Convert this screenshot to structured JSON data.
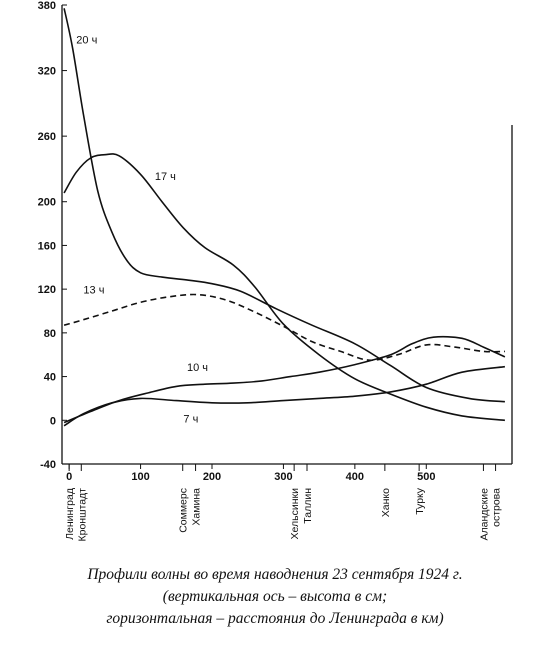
{
  "chart_data": {
    "type": "line",
    "title": "",
    "xlabel": "",
    "ylabel": "",
    "xlim": [
      -10,
      620
    ],
    "ylim": [
      -40,
      380
    ],
    "y_ticks": [
      -40,
      0,
      40,
      80,
      120,
      160,
      200,
      260,
      320,
      380
    ],
    "x_ticks": [
      0,
      100,
      200,
      300,
      400,
      500
    ],
    "grid": false,
    "dashed_series": [
      "13 ч"
    ],
    "locations": [
      {
        "x": 0,
        "label": "Ленинград"
      },
      {
        "x": 17,
        "label": "Кронштадт"
      },
      {
        "x": 159,
        "label": "Соммерс"
      },
      {
        "x": 177,
        "label": "Хамина"
      },
      {
        "x": 315,
        "label": "Хельсинки"
      },
      {
        "x": 333,
        "label": "Таллин"
      },
      {
        "x": 442,
        "label": "Ханко"
      },
      {
        "x": 490,
        "label": "Турку"
      },
      {
        "x": 580,
        "label": "Аландские"
      },
      {
        "x": 597,
        "label": "острова"
      }
    ],
    "series": [
      {
        "name": "20 ч",
        "x": [
          -7,
          5,
          20,
          40,
          60,
          80,
          100,
          130,
          170,
          200,
          240,
          290,
          340,
          400,
          450,
          500,
          560,
          610
        ],
        "values": [
          377,
          340,
          280,
          210,
          172,
          147,
          135,
          131,
          128,
          125,
          118,
          102,
          87,
          70,
          50,
          30,
          20,
          17
        ]
      },
      {
        "name": "17 ч",
        "x": [
          -7,
          10,
          30,
          50,
          70,
          100,
          130,
          160,
          190,
          230,
          260,
          300,
          350,
          400,
          450,
          500,
          550,
          610
        ],
        "values": [
          208,
          227,
          240,
          243,
          242,
          225,
          200,
          176,
          158,
          142,
          122,
          88,
          60,
          38,
          24,
          12,
          4,
          0
        ]
      },
      {
        "name": "13 ч",
        "x": [
          -7,
          20,
          60,
          100,
          140,
          180,
          220,
          260,
          300,
          340,
          380,
          420,
          460,
          500,
          540,
          580,
          610
        ],
        "values": [
          87,
          92,
          100,
          108,
          113,
          115,
          110,
          99,
          86,
          72,
          63,
          55,
          60,
          69,
          67,
          63,
          63
        ]
      },
      {
        "name": "10 ч",
        "x": [
          -7,
          30,
          70,
          110,
          150,
          190,
          230,
          270,
          310,
          350,
          400,
          450,
          480,
          510,
          550,
          580,
          610
        ],
        "values": [
          -2,
          8,
          18,
          25,
          31,
          33,
          34,
          36,
          40,
          44,
          51,
          60,
          70,
          76,
          75,
          67,
          58
        ]
      },
      {
        "name": "7 ч",
        "x": [
          -7,
          20,
          60,
          100,
          150,
          200,
          250,
          300,
          350,
          400,
          450,
          500,
          550,
          610
        ],
        "values": [
          -5,
          6,
          16,
          20,
          18,
          16,
          16,
          18,
          20,
          22,
          26,
          33,
          44,
          49
        ]
      }
    ]
  },
  "caption": {
    "line1": "Профили волны во время наводнения 23 сентября 1924 г.",
    "line2": "(вертикальная ось – высота в см;",
    "line3": "горизонтальная – расстояния до Ленинграда в км)"
  }
}
